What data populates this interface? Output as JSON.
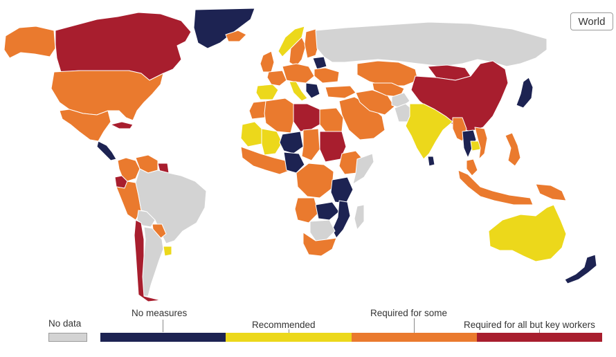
{
  "control": {
    "label": "World"
  },
  "colors": {
    "ocean": "#ffffff",
    "no_data": "#d3d3d3",
    "no_measures": "#1d2352",
    "recommended": "#ecd81b",
    "required_some": "#ea7a2e",
    "required_all": "#a81e2e"
  },
  "legend": {
    "no_data": "No data",
    "categories": [
      {
        "label": "No measures",
        "color": "#1d2352"
      },
      {
        "label": "Recommended",
        "color": "#ecd81b"
      },
      {
        "label": "Required for some",
        "color": "#ea7a2e"
      },
      {
        "label": "Required for all but key workers",
        "color": "#a81e2e"
      }
    ]
  },
  "regions": [
    {
      "name": "Greenland",
      "category": "no_measures"
    },
    {
      "name": "Canada",
      "category": "required_all"
    },
    {
      "name": "Alaska",
      "category": "required_some"
    },
    {
      "name": "United States",
      "category": "required_some"
    },
    {
      "name": "Mexico",
      "category": "required_some"
    },
    {
      "name": "Central America",
      "category": "no_measures"
    },
    {
      "name": "Cuba",
      "category": "required_all"
    },
    {
      "name": "Colombia",
      "category": "required_some"
    },
    {
      "name": "Venezuela",
      "category": "required_some"
    },
    {
      "name": "Guyana",
      "category": "required_all"
    },
    {
      "name": "Ecuador",
      "category": "required_all"
    },
    {
      "name": "Peru",
      "category": "required_some"
    },
    {
      "name": "Brazil",
      "category": "no_data"
    },
    {
      "name": "Bolivia",
      "category": "no_data"
    },
    {
      "name": "Paraguay",
      "category": "required_some"
    },
    {
      "name": "Uruguay",
      "category": "recommended"
    },
    {
      "name": "Argentina",
      "category": "no_data"
    },
    {
      "name": "Chile",
      "category": "required_all"
    },
    {
      "name": "Iceland",
      "category": "required_some"
    },
    {
      "name": "Norway",
      "category": "recommended"
    },
    {
      "name": "Sweden",
      "category": "required_some"
    },
    {
      "name": "Finland",
      "category": "required_some"
    },
    {
      "name": "United Kingdom",
      "category": "required_some"
    },
    {
      "name": "Spain",
      "category": "recommended"
    },
    {
      "name": "France",
      "category": "required_some"
    },
    {
      "name": "Central Europe",
      "category": "required_some"
    },
    {
      "name": "Italy",
      "category": "recommended"
    },
    {
      "name": "Belarus",
      "category": "no_measures"
    },
    {
      "name": "Ukraine",
      "category": "required_some"
    },
    {
      "name": "Balkans",
      "category": "no_measures"
    },
    {
      "name": "Russia",
      "category": "no_data"
    },
    {
      "name": "Kazakhstan",
      "category": "required_some"
    },
    {
      "name": "Mongolia",
      "category": "required_all"
    },
    {
      "name": "China",
      "category": "required_all"
    },
    {
      "name": "Japan",
      "category": "no_measures"
    },
    {
      "name": "Turkey",
      "category": "required_some"
    },
    {
      "name": "Middle East",
      "category": "required_some"
    },
    {
      "name": "Iran",
      "category": "required_some"
    },
    {
      "name": "Central Asia",
      "category": "required_some"
    },
    {
      "name": "Afghanistan",
      "category": "no_data"
    },
    {
      "name": "Pakistan",
      "category": "no_data"
    },
    {
      "name": "India",
      "category": "recommended"
    },
    {
      "name": "Sri Lanka",
      "category": "no_measures"
    },
    {
      "name": "Myanmar",
      "category": "required_some"
    },
    {
      "name": "Thailand",
      "category": "no_measures"
    },
    {
      "name": "Cambodia",
      "category": "recommended"
    },
    {
      "name": "Vietnam",
      "category": "required_some"
    },
    {
      "name": "Malaysia",
      "category": "required_some"
    },
    {
      "name": "Indonesia",
      "category": "required_some"
    },
    {
      "name": "Philippines",
      "category": "required_some"
    },
    {
      "name": "Papua New Guinea",
      "category": "required_some"
    },
    {
      "name": "Australia",
      "category": "recommended"
    },
    {
      "name": "New Zealand",
      "category": "no_measures"
    },
    {
      "name": "Morocco",
      "category": "required_some"
    },
    {
      "name": "Algeria",
      "category": "required_some"
    },
    {
      "name": "Libya",
      "category": "required_all"
    },
    {
      "name": "Egypt",
      "category": "required_some"
    },
    {
      "name": "Mauritania",
      "category": "recommended"
    },
    {
      "name": "Mali",
      "category": "recommended"
    },
    {
      "name": "Niger",
      "category": "no_measures"
    },
    {
      "name": "Chad",
      "category": "required_some"
    },
    {
      "name": "Sudan",
      "category": "required_all"
    },
    {
      "name": "Ethiopia",
      "category": "required_some"
    },
    {
      "name": "Somalia",
      "category": "no_data"
    },
    {
      "name": "West Africa",
      "category": "required_some"
    },
    {
      "name": "Nigeria",
      "category": "no_measures"
    },
    {
      "name": "DR Congo",
      "category": "required_some"
    },
    {
      "name": "Tanzania",
      "category": "no_measures"
    },
    {
      "name": "Angola",
      "category": "required_some"
    },
    {
      "name": "Zambia",
      "category": "no_measures"
    },
    {
      "name": "Mozambique",
      "category": "no_measures"
    },
    {
      "name": "Namibia Botswana",
      "category": "no_data"
    },
    {
      "name": "South Africa",
      "category": "required_some"
    },
    {
      "name": "Madagascar",
      "category": "no_data"
    }
  ]
}
